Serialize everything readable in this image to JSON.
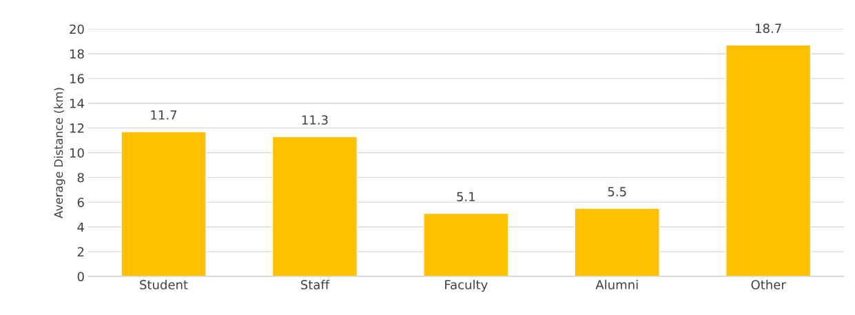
{
  "chart_data": {
    "type": "bar",
    "ylabel": "Average Distance (km)",
    "categories": [
      "Student",
      "Staff",
      "Faculty",
      "Alumni",
      "Other"
    ],
    "values": [
      11.7,
      11.3,
      5.1,
      5.5,
      18.7
    ],
    "color": "#ffc000",
    "ylim": [
      0,
      20
    ],
    "yticks": [
      0,
      2,
      4,
      6,
      8,
      10,
      12,
      14,
      16,
      18,
      20
    ],
    "grid": "y",
    "data_labels": true
  }
}
